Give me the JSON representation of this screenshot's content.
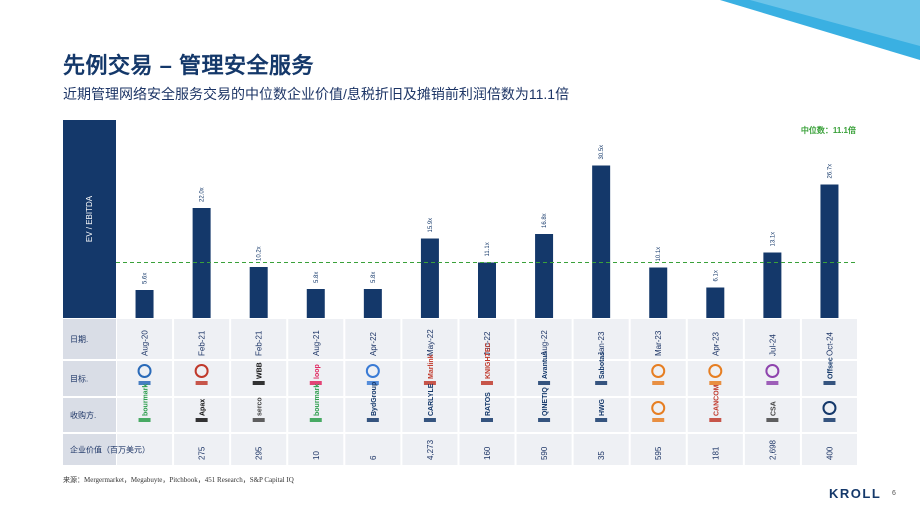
{
  "header": {
    "title": "先例交易 – 管理安全服务",
    "subtitle": "近期管理网络安全服务交易的中位数企业价值/息税折旧及摊销前利润倍数为11.1倍"
  },
  "chart_data": {
    "type": "bar",
    "ylabel": "EV / EBITDA",
    "categories": [
      "Aug-20",
      "Feb-21",
      "Feb-21",
      "Aug-21",
      "Apr-22",
      "May-22",
      "Jun-22",
      "Aug-22",
      "Jan-23",
      "Mar-23",
      "Apr-23",
      "Jul-24",
      "Oct-24"
    ],
    "values": [
      5.6,
      22.0,
      10.2,
      5.8,
      5.8,
      15.9,
      11.1,
      16.8,
      30.5,
      10.1,
      6.1,
      13.1,
      26.7
    ],
    "value_labels": [
      "5.6x",
      "22.0x",
      "10.2x",
      "5.8x",
      "5.8x",
      "15.9x",
      "11.1x",
      "16.8x",
      "30.5x",
      "10.1x",
      "6.1x",
      "13.1x",
      "26.7x"
    ],
    "ylim": [
      0,
      38
    ],
    "median": {
      "value": 11.1,
      "label": "中位数：11.1倍"
    },
    "bar_color": "#14386a",
    "median_color": "#3aa13a"
  },
  "table": {
    "row_labels": {
      "date": "日期.",
      "target": "目标.",
      "acquirer": "收购方.",
      "ev": "企业价值（百万美元）"
    },
    "targets": [
      {
        "name": "",
        "color": "#2a6ab8"
      },
      {
        "name": "",
        "color": "#c0392b"
      },
      {
        "name": "WBB",
        "color": "#111111"
      },
      {
        "name": "loop",
        "color": "#e0245e"
      },
      {
        "name": "",
        "color": "#3a7bd5"
      },
      {
        "name": "Marlink",
        "color": "#c0392b"
      },
      {
        "name": "KNIGHTEC",
        "color": "#c0392b"
      },
      {
        "name": "Avantus",
        "color": "#14386a"
      },
      {
        "name": "Sabotas",
        "color": "#14386a"
      },
      {
        "name": "",
        "color": "#e67e22"
      },
      {
        "name": "",
        "color": "#e67e22"
      },
      {
        "name": "",
        "color": "#8e44ad"
      },
      {
        "name": "Offsec",
        "color": "#14386a"
      }
    ],
    "acquirers": [
      {
        "name": "bourmark",
        "color": "#2a9d4a"
      },
      {
        "name": "Apax",
        "color": "#111111"
      },
      {
        "name": "serco",
        "color": "#444444"
      },
      {
        "name": "bourmark",
        "color": "#2a9d4a"
      },
      {
        "name": "BydGroup",
        "color": "#14386a"
      },
      {
        "name": "CARLYLE",
        "color": "#14386a"
      },
      {
        "name": "RATOS",
        "color": "#14386a"
      },
      {
        "name": "QINETIQ",
        "color": "#14386a"
      },
      {
        "name": "HWG",
        "color": "#14386a"
      },
      {
        "name": "",
        "color": "#e67e22"
      },
      {
        "name": "CANCOM",
        "color": "#c0392b"
      },
      {
        "name": "CSA",
        "color": "#444444"
      },
      {
        "name": "",
        "color": "#14386a"
      }
    ],
    "ev": [
      "",
      "275",
      "295",
      "10",
      "6",
      "4,273",
      "160",
      "590",
      "35",
      "595",
      "181",
      "2,698",
      "400"
    ]
  },
  "footer": {
    "source": "来源：Mergermarket，Megabuyte，Pitchbook，451 Research，S&P Capital IQ",
    "logo_text": "KROLL",
    "page_number": "6"
  }
}
